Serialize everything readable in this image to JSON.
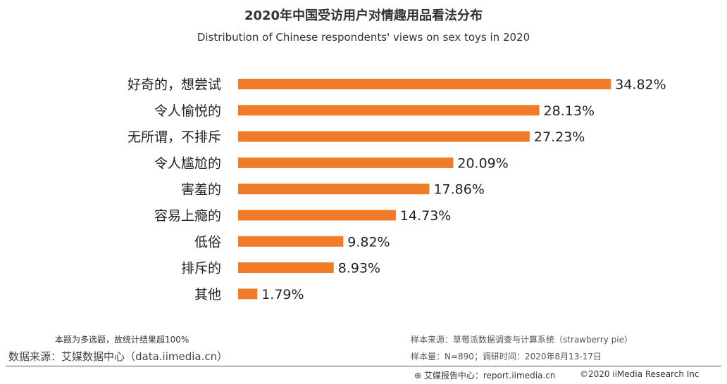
{
  "chart_data": {
    "type": "bar",
    "orientation": "horizontal",
    "title": "2020年中国受访用户对情趣用品看法分布",
    "subtitle": "Distribution of Chinese respondents' views on sex toys in 2020",
    "categories": [
      "好奇的，想尝试",
      "令人愉悦的",
      "无所谓，不排斥",
      "令人尴尬的",
      "害羞的",
      "容易上瘾的",
      "低俗",
      "排斥的",
      "其他"
    ],
    "values": [
      34.82,
      28.13,
      27.23,
      20.09,
      17.86,
      14.73,
      9.82,
      8.93,
      1.79
    ],
    "value_labels": [
      "34.82%",
      "28.13%",
      "27.23%",
      "20.09%",
      "17.86%",
      "14.73%",
      "9.82%",
      "8.93%",
      "1.79%"
    ],
    "unit": "%",
    "bar_color": "#f07c2a",
    "grid": false
  },
  "footer": {
    "note": "本题为多选题，故统计结果超100%",
    "data_source": "数据来源：艾媒数据中心（data.iimedia.cn）",
    "sample_source": "样本来源：草莓派数据调查与计算系统（strawberry pie）",
    "sample_size": "样本量：N=890；调研时间：2020年8月13-17日",
    "report_center": "艾媒报告中心：report.iimedia.cn",
    "copyright": "©2020  iiMedia Research  Inc"
  }
}
